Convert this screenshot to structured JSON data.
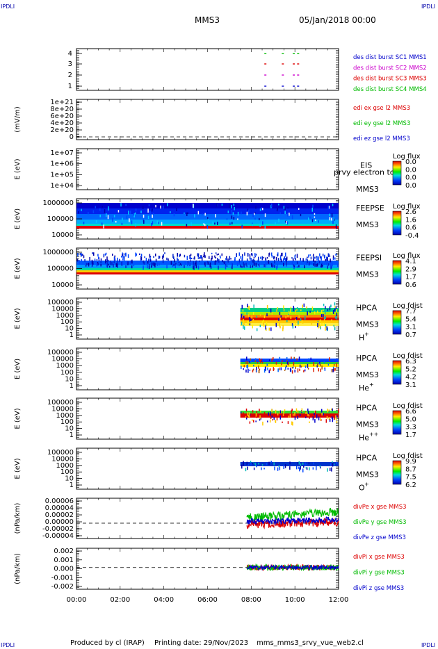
{
  "header": {
    "corner_label": "IPDLI",
    "spacecraft": "MMS3",
    "date_time": "05/Jan/2018 00:00"
  },
  "footer": {
    "produced_by": "Produced by cl (IRAP)",
    "printing_date": "Printing date: 29/Nov/2023",
    "file_name": "mms_mms3_srvy_vue_web2.cl"
  },
  "x_ticks": [
    "00:00",
    "02:00",
    "04:00",
    "06:00",
    "08:00",
    "10:00",
    "12:00"
  ],
  "chart_data": [
    {
      "type": "scatter",
      "panel": "des dist burst",
      "yticks": [
        "4",
        "3",
        "2",
        "1"
      ],
      "ylim": [
        0.5,
        4.5
      ],
      "legend": [
        {
          "text": "des dist burst SC1 MMS1",
          "color": "#0000cc"
        },
        {
          "text": "des dist burst SC2 MMS2",
          "color": "#cc00cc"
        },
        {
          "text": "des dist burst SC3 MMS3",
          "color": "#dd0000"
        },
        {
          "text": "des dist burst SC4 MMS4",
          "color": "#00bb00"
        }
      ],
      "series": [
        {
          "name": "des dist burst SC1 MMS1",
          "y": 1,
          "x": [
            8.6,
            9.4,
            9.9,
            10.1
          ]
        },
        {
          "name": "des dist burst SC2 MMS2",
          "y": 2,
          "x": [
            8.6,
            9.4,
            9.9,
            10.1
          ]
        },
        {
          "name": "des dist burst SC3 MMS3",
          "y": 3,
          "x": [
            8.6,
            9.4,
            9.9,
            10.1
          ]
        },
        {
          "name": "des dist burst SC4 MMS4",
          "y": 4,
          "x": [
            8.6,
            9.4,
            9.9,
            10.1
          ]
        }
      ]
    },
    {
      "type": "line",
      "panel": "edi e gse",
      "ylabel": "(mV/m)",
      "yticks": [
        "1e+21",
        "8e+20",
        "6e+20",
        "4e+20",
        "2e+20",
        "0"
      ],
      "ylim": [
        0,
        1e+21
      ],
      "zero_line": true,
      "legend": [
        {
          "text": "edi ex gse l2 MMS3",
          "color": "#dd0000"
        },
        {
          "text": "edi ey gse l2 MMS3",
          "color": "#00bb00"
        },
        {
          "text": "edi ez gse l2 MMS3",
          "color": "#0000cc"
        }
      ]
    },
    {
      "type": "heatmap",
      "panel": "EIS",
      "ylabel": "E (eV)",
      "yticks": [
        "1e+07",
        "1e+06",
        "1e+05",
        "1e+04"
      ],
      "name": "EIS",
      "spacecraft": "MMS3",
      "overlay_text": "prvy electron to",
      "colorbar_title": "Log flux",
      "colorbar_ticks": [
        "0.0",
        "0.0",
        "0.0",
        "0.0"
      ]
    },
    {
      "type": "heatmap",
      "panel": "FEEPSE",
      "ylabel": "E (eV)",
      "yticks": [
        "1000000",
        "100000",
        "10000"
      ],
      "name": "FEEPSE",
      "spacecraft": "MMS3",
      "colorbar_title": "Log flux",
      "colorbar_ticks": [
        "2.6",
        "1.6",
        "0.6",
        "-0.4"
      ],
      "x_range": [
        0,
        12
      ]
    },
    {
      "type": "heatmap",
      "panel": "FEEPSI",
      "ylabel": "E (eV)",
      "yticks": [
        "1000000",
        "100000",
        "10000"
      ],
      "name": "FEEPSI",
      "spacecraft": "MMS3",
      "colorbar_title": "Log flux",
      "colorbar_ticks": [
        "4.1",
        "2.9",
        "1.7",
        "0.6"
      ],
      "x_range": [
        0,
        12
      ]
    },
    {
      "type": "heatmap",
      "panel": "HPCA H+",
      "ylabel": "E (eV)",
      "yticks": [
        "100000",
        "10000",
        "1000",
        "100",
        "10",
        "1"
      ],
      "name": "HPCA",
      "spacecraft": "MMS3",
      "species": "H",
      "species_sup": "+",
      "colorbar_title": "Log fdist",
      "colorbar_ticks": [
        "7.7",
        "5.4",
        "3.1",
        "0.7"
      ],
      "x_range": [
        7.5,
        12
      ]
    },
    {
      "type": "heatmap",
      "panel": "HPCA He+",
      "ylabel": "E (eV)",
      "yticks": [
        "100000",
        "10000",
        "1000",
        "100",
        "10",
        "1"
      ],
      "name": "HPCA",
      "spacecraft": "MMS3",
      "species": "He",
      "species_sup": "+",
      "colorbar_title": "Log fdist",
      "colorbar_ticks": [
        "6.3",
        "5.2",
        "4.2",
        "3.1"
      ],
      "x_range": [
        7.5,
        12
      ]
    },
    {
      "type": "heatmap",
      "panel": "HPCA He++",
      "ylabel": "E (eV)",
      "yticks": [
        "100000",
        "10000",
        "1000",
        "100",
        "10",
        "1"
      ],
      "name": "HPCA",
      "spacecraft": "MMS3",
      "species": "He",
      "species_sup": "++",
      "colorbar_title": "Log fdist",
      "colorbar_ticks": [
        "6.6",
        "5.0",
        "3.3",
        "1.7"
      ],
      "x_range": [
        7.5,
        12
      ]
    },
    {
      "type": "heatmap",
      "panel": "HPCA O+",
      "ylabel": "E (eV)",
      "yticks": [
        "100000",
        "10000",
        "1000",
        "100",
        "10",
        "1"
      ],
      "name": "HPCA",
      "spacecraft": "MMS3",
      "species": "O",
      "species_sup": "+",
      "colorbar_title": "Log fdist",
      "colorbar_ticks": [
        "9.9",
        "8.7",
        "7.5",
        "6.2"
      ],
      "x_range": [
        7.5,
        12
      ]
    },
    {
      "type": "line",
      "panel": "divPe",
      "ylabel": "(nPa/km)",
      "yticks": [
        "0.00006",
        "0.00004",
        "0.00002",
        "0.00000",
        "-0.00002",
        "-0.00004"
      ],
      "ylim": [
        -5e-05,
        7e-05
      ],
      "zero_line": true,
      "x_range": [
        7.8,
        12
      ],
      "legend": [
        {
          "text": "divPe x gse MMS3",
          "color": "#dd0000"
        },
        {
          "text": "divPe y gse MMS3",
          "color": "#00bb00"
        },
        {
          "text": "divPe z gse MMS3",
          "color": "#0000cc"
        }
      ]
    },
    {
      "type": "line",
      "panel": "divPi",
      "ylabel": "(nPa/km)",
      "yticks": [
        "0.002",
        "0.001",
        "0.000",
        "-0.001",
        "-0.002"
      ],
      "ylim": [
        -0.0022,
        0.0022
      ],
      "zero_line": true,
      "x_range": [
        7.8,
        12
      ],
      "legend": [
        {
          "text": "divPi x gse MMS3",
          "color": "#dd0000"
        },
        {
          "text": "divPi y gse MMS3",
          "color": "#00bb00"
        },
        {
          "text": "divPi z gse MMS3",
          "color": "#0000cc"
        }
      ]
    }
  ]
}
